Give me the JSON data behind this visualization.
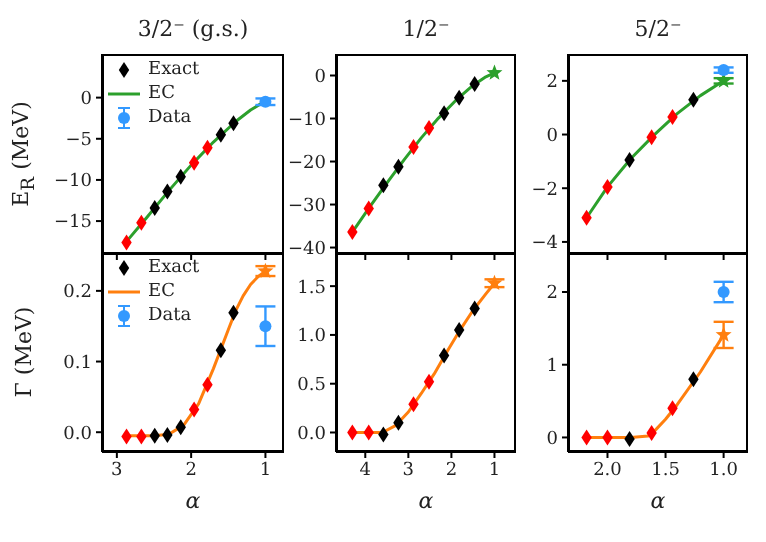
{
  "chart_data": [
    {
      "type": "scatter",
      "title": "3/2⁻ (g.s.)",
      "ylabel": "E$_{R}$ (MeV)",
      "xlim": [
        3.2,
        0.75
      ],
      "xticks": [
        3,
        2,
        1
      ],
      "ylim": [
        -19,
        5.3
      ],
      "yticks": [
        -15,
        -10,
        -5,
        0
      ],
      "tick_labels": "y",
      "legend": "top left",
      "series": [
        {
          "name": "Exact",
          "type": "scatter",
          "marker": "diamond",
          "color": "#000000",
          "x": [
            2.87,
            2.67,
            2.49,
            2.32,
            2.14,
            1.96,
            1.78,
            1.6,
            1.43
          ],
          "values": [
            -17.6,
            -15.2,
            -13.4,
            -11.4,
            -9.6,
            -7.9,
            -6.1,
            -4.5,
            -3.1
          ],
          "colors": [
            "#ff0000",
            "#ff0000",
            "#000000",
            "#000000",
            "#000000",
            "#ff0000",
            "#ff0000",
            "#000000",
            "#000000"
          ]
        },
        {
          "name": "EC",
          "type": "line",
          "color": "#2ca02c",
          "x": [
            2.9,
            2.6,
            2.3,
            2.0,
            1.7,
            1.4,
            1.2,
            1.0
          ],
          "values": [
            -17.8,
            -14.6,
            -11.3,
            -8.2,
            -5.4,
            -2.9,
            -1.5,
            -0.4
          ]
        },
        {
          "name": "Data",
          "type": "scatter",
          "marker": "circle",
          "color": "#3399ff",
          "x": [
            1
          ],
          "values": [
            -0.5
          ],
          "errors": [
            0.4
          ]
        }
      ]
    },
    {
      "type": "scatter",
      "title": "1/2⁻",
      "xlim": [
        4.68,
        0.5
      ],
      "xticks": [
        4,
        3,
        2,
        1
      ],
      "ylim": [
        -41.5,
        5
      ],
      "yticks": [
        -40,
        -30,
        -20,
        -10,
        0
      ],
      "tick_labels": "y",
      "series": [
        {
          "type": "scatter",
          "marker": "diamond",
          "color": "#000000",
          "x": [
            4.3,
            3.92,
            3.58,
            3.23,
            2.88,
            2.52,
            2.17,
            1.82,
            1.46
          ],
          "values": [
            -36.4,
            -30.9,
            -25.5,
            -21.2,
            -16.6,
            -12.2,
            -8.8,
            -5.2,
            -2.0
          ],
          "colors": [
            "#ff0000",
            "#ff0000",
            "#000000",
            "#000000",
            "#ff0000",
            "#ff0000",
            "#000000",
            "#000000",
            "#000000"
          ]
        },
        {
          "type": "line",
          "color": "#2ca02c",
          "x": [
            4.3,
            3.9,
            3.5,
            3.1,
            2.7,
            2.3,
            1.9,
            1.5,
            1.2,
            1.0
          ],
          "values": [
            -36.4,
            -30.6,
            -25.0,
            -19.6,
            -14.5,
            -9.9,
            -5.8,
            -2.3,
            -0.3,
            0.6
          ]
        },
        {
          "type": "scatter",
          "marker": "star",
          "color": "#2ca02c",
          "x": [
            1
          ],
          "values": [
            0.6
          ]
        }
      ]
    },
    {
      "type": "scatter",
      "title": "5/2⁻",
      "xlim": [
        2.34,
        0.79
      ],
      "xticks": [
        2,
        1.5,
        1
      ],
      "ylim": [
        -4.45,
        3.0
      ],
      "yticks": [
        -4,
        -2,
        0,
        2
      ],
      "tick_labels": "y",
      "series": [
        {
          "type": "scatter",
          "marker": "diamond",
          "color": "#000000",
          "x": [
            2.18,
            2.0,
            1.81,
            1.62,
            1.44,
            1.26
          ],
          "values": [
            -3.1,
            -1.95,
            -0.95,
            -0.1,
            0.65,
            1.3
          ],
          "colors": [
            "#ff0000",
            "#ff0000",
            "#000000",
            "#ff0000",
            "#ff0000",
            "#000000"
          ]
        },
        {
          "type": "line",
          "color": "#2ca02c",
          "x": [
            2.18,
            2.0,
            1.8,
            1.6,
            1.4,
            1.2,
            1.0
          ],
          "values": [
            -3.1,
            -1.95,
            -0.9,
            -0.02,
            0.78,
            1.45,
            2.0
          ]
        },
        {
          "type": "scatter",
          "marker": "star",
          "color": "#2ca02c",
          "x": [
            1
          ],
          "values": [
            2.0
          ],
          "errors": [
            0.1
          ]
        },
        {
          "type": "scatter",
          "marker": "circle",
          "color": "#3399ff",
          "x": [
            1
          ],
          "values": [
            2.4
          ],
          "errors": [
            0.1
          ]
        }
      ]
    },
    {
      "type": "scatter",
      "xlabel": "α",
      "ylabel": "Γ (MeV)",
      "xlim": [
        3.2,
        0.75
      ],
      "xticks": [
        3,
        2,
        1
      ],
      "ylim": [
        -0.028,
        0.255
      ],
      "yticks": [
        {
          "value": 0,
          "label": "0.0"
        },
        {
          "value": 0.1,
          "label": "0.1"
        },
        {
          "value": 0.2,
          "label": "0.2"
        }
      ],
      "legend": "top left",
      "series": [
        {
          "name": "Exact",
          "type": "scatter",
          "marker": "diamond",
          "color": "#000000",
          "x": [
            2.87,
            2.67,
            2.49,
            2.32,
            2.14,
            1.96,
            1.78,
            1.6,
            1.43
          ],
          "values": [
            -0.006,
            -0.006,
            -0.005,
            -0.004,
            0.007,
            0.032,
            0.067,
            0.116,
            0.169
          ],
          "colors": [
            "#ff0000",
            "#ff0000",
            "#000000",
            "#000000",
            "#000000",
            "#ff0000",
            "#ff0000",
            "#000000",
            "#000000"
          ]
        },
        {
          "name": "EC",
          "type": "line",
          "color": "#ff7f0e",
          "x": [
            2.9,
            2.5,
            2.3,
            2.1,
            1.9,
            1.7,
            1.5,
            1.4,
            1.3,
            1.2,
            1.1,
            1.0
          ],
          "values": [
            -0.005,
            -0.005,
            -0.003,
            0.01,
            0.04,
            0.09,
            0.145,
            0.172,
            0.193,
            0.209,
            0.22,
            0.228
          ]
        },
        {
          "type": "scatter",
          "marker": "star",
          "color": "#ff7f0e",
          "x": [
            1
          ],
          "values": [
            0.228
          ],
          "errors": [
            0.007
          ]
        },
        {
          "name": "Data",
          "type": "scatter",
          "marker": "circle",
          "color": "#3399ff",
          "x": [
            1
          ],
          "values": [
            0.15
          ],
          "errors": [
            0.028
          ]
        }
      ]
    },
    {
      "type": "scatter",
      "xlabel": "α",
      "xlim": [
        4.68,
        0.5
      ],
      "xticks": [
        4,
        3,
        2,
        1
      ],
      "ylim": [
        -0.2,
        1.85
      ],
      "yticks": [
        {
          "value": 0,
          "label": "0.0"
        },
        {
          "value": 0.5,
          "label": "0.5"
        },
        {
          "value": 1,
          "label": "1.0"
        },
        {
          "value": 1.5,
          "label": "1.5"
        }
      ],
      "series": [
        {
          "type": "scatter",
          "marker": "diamond",
          "color": "#000000",
          "x": [
            4.3,
            3.92,
            3.58,
            3.23,
            2.88,
            2.52,
            2.17,
            1.82,
            1.46
          ],
          "values": [
            0.0,
            0.0,
            -0.02,
            0.1,
            0.29,
            0.52,
            0.79,
            1.05,
            1.27
          ],
          "colors": [
            "#ff0000",
            "#ff0000",
            "#000000",
            "#000000",
            "#ff0000",
            "#ff0000",
            "#000000",
            "#000000",
            "#000000"
          ]
        },
        {
          "type": "line",
          "color": "#ff7f0e",
          "x": [
            4.3,
            3.9,
            3.6,
            3.3,
            3.0,
            2.7,
            2.4,
            2.1,
            1.8,
            1.5,
            1.2,
            1.0
          ],
          "values": [
            0.0,
            0.0,
            0.0,
            0.07,
            0.21,
            0.4,
            0.6,
            0.83,
            1.05,
            1.25,
            1.42,
            1.53
          ]
        },
        {
          "type": "scatter",
          "marker": "star",
          "color": "#ff7f0e",
          "x": [
            1
          ],
          "values": [
            1.53
          ],
          "errors": [
            0.04
          ]
        }
      ]
    },
    {
      "type": "scatter",
      "xlabel": "α",
      "xlim": [
        2.34,
        0.79
      ],
      "xticks": [
        {
          "value": 2,
          "label": "2.0"
        },
        {
          "value": 1.5,
          "label": "1.5"
        },
        {
          "value": 1,
          "label": "1.0"
        }
      ],
      "ylim": [
        -0.2,
        2.55
      ],
      "yticks": [
        0,
        1,
        2
      ],
      "series": [
        {
          "type": "scatter",
          "marker": "diamond",
          "color": "#000000",
          "x": [
            2.18,
            2.0,
            1.81,
            1.62,
            1.44,
            1.26
          ],
          "values": [
            0,
            0,
            -0.02,
            0.06,
            0.4,
            0.8
          ],
          "colors": [
            "#ff0000",
            "#ff0000",
            "#000000",
            "#ff0000",
            "#ff0000",
            "#000000"
          ]
        },
        {
          "type": "line",
          "color": "#ff7f0e",
          "x": [
            2.18,
            2.0,
            1.8,
            1.65,
            1.6,
            1.5,
            1.4,
            1.2,
            1.0
          ],
          "values": [
            0,
            0,
            0,
            0.02,
            0.08,
            0.25,
            0.45,
            0.9,
            1.41
          ]
        },
        {
          "type": "scatter",
          "marker": "star",
          "color": "#ff7f0e",
          "x": [
            1
          ],
          "values": [
            1.41
          ],
          "errors": [
            0.18
          ]
        },
        {
          "type": "scatter",
          "marker": "circle",
          "color": "#3399ff",
          "x": [
            1
          ],
          "values": [
            2.0
          ],
          "errors": [
            0.14
          ]
        }
      ]
    }
  ]
}
